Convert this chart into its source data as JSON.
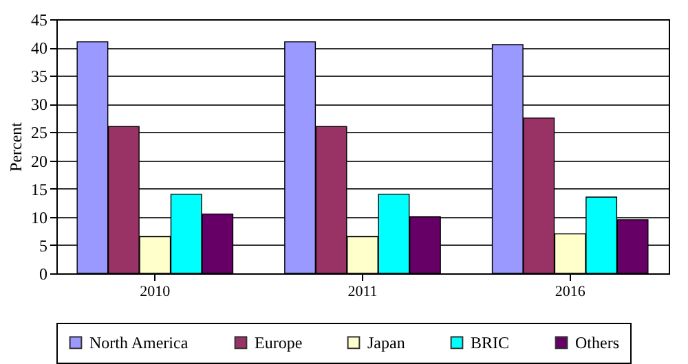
{
  "chart_data": {
    "type": "bar",
    "ylabel": "Percent",
    "categories": [
      "2010",
      "2011",
      "2016"
    ],
    "series": [
      {
        "name": "North America",
        "color": "#9999ff",
        "values": [
          41,
          41,
          40.5
        ]
      },
      {
        "name": "Europe",
        "color": "#993366",
        "values": [
          26,
          26,
          27.5
        ]
      },
      {
        "name": "Japan",
        "color": "#ffffcc",
        "values": [
          6.5,
          6.5,
          7
        ]
      },
      {
        "name": "BRIC",
        "color": "#00ffff",
        "values": [
          14,
          14,
          13.5
        ]
      },
      {
        "name": "Others",
        "color": "#660066",
        "values": [
          10.5,
          10,
          9.5
        ]
      }
    ],
    "ylim": [
      0,
      45
    ],
    "yticks": [
      0,
      5,
      10,
      15,
      20,
      25,
      30,
      35,
      40,
      45
    ],
    "grid": "y",
    "legend": "bottom"
  }
}
